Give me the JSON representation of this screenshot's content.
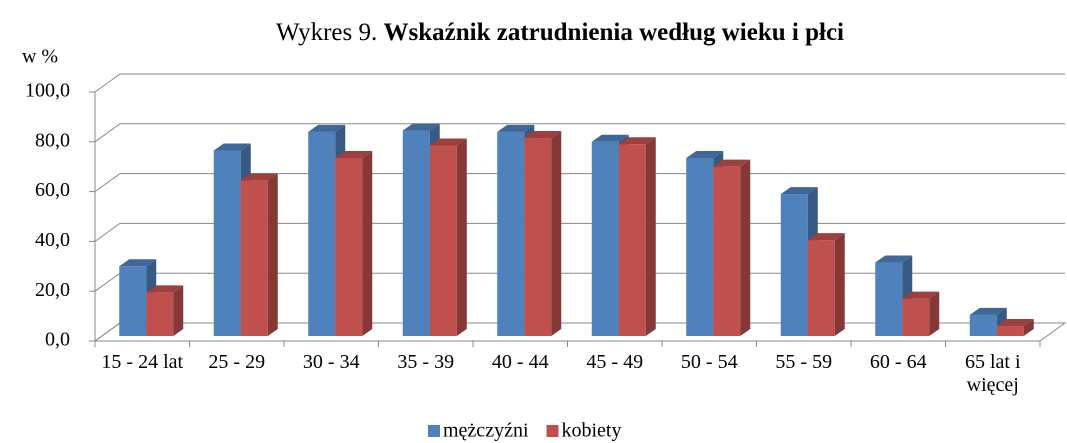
{
  "chart_data": {
    "type": "bar3d",
    "title_number": "Wykres  9.",
    "title": "Wskaźnik zatrudnienia według wieku i płci",
    "y_label": "w %",
    "categories": [
      "15 - 24 lat",
      "25 - 29",
      "30 - 34",
      "35 - 39",
      "40 - 44",
      "45 - 49",
      "50 - 54",
      "55 - 59",
      "60 - 64",
      "65 lat i więcej"
    ],
    "series": [
      {
        "name": "mężczyźni",
        "color": "#4f81bd",
        "values": [
          28,
          74.5,
          82,
          82.5,
          82,
          78,
          71.5,
          57,
          29.5,
          8.5
        ]
      },
      {
        "name": "kobiety",
        "color": "#c0504d",
        "values": [
          17.5,
          62.5,
          71.5,
          76.5,
          79.5,
          77,
          68,
          38.5,
          15,
          4
        ]
      }
    ],
    "ylim": [
      0,
      100
    ],
    "yticks": [
      {
        "value": 0,
        "label": "0,0"
      },
      {
        "value": 20,
        "label": "20,0"
      },
      {
        "value": 40,
        "label": "40,0"
      },
      {
        "value": 60,
        "label": "60,0"
      },
      {
        "value": 80,
        "label": "80,0"
      },
      {
        "value": 100,
        "label": "100,0"
      }
    ],
    "grid": true,
    "legend": "bottom"
  }
}
